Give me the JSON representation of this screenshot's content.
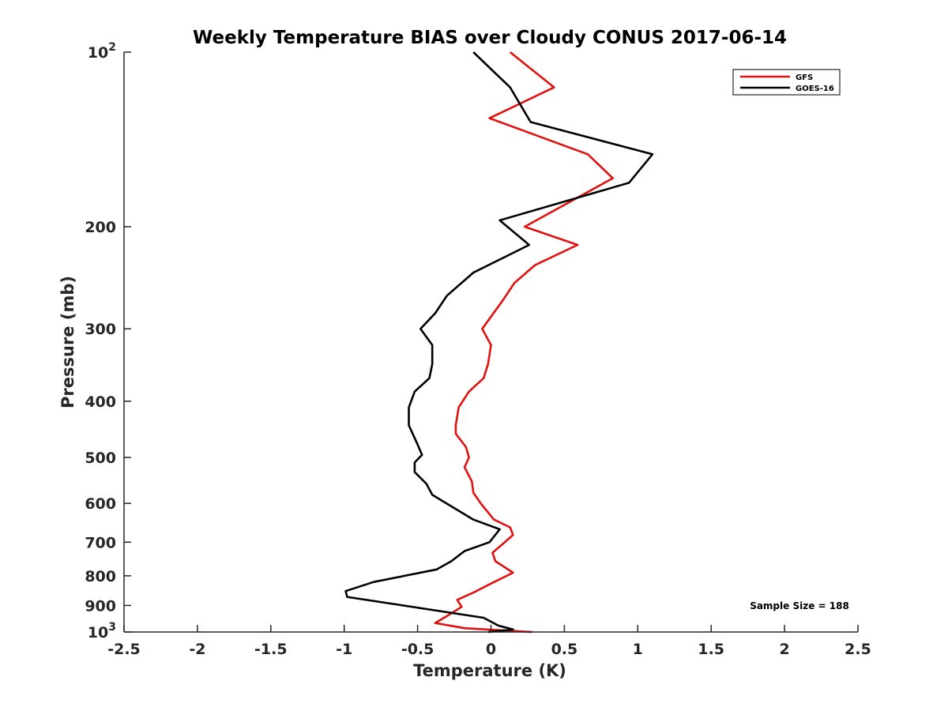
{
  "chart_data": {
    "type": "line",
    "title": "Weekly Temperature BIAS over Cloudy CONUS 2017-06-14",
    "xlabel": "Temperature (K)",
    "ylabel": "Pressure (mb)",
    "xlim": [
      -2.5,
      2.5
    ],
    "ylim": [
      1000,
      100
    ],
    "yscale": "log",
    "y_reversed": true,
    "x_ticks": [
      "-2.5",
      "-2",
      "-1.5",
      "-1",
      "-0.5",
      "0",
      "0.5",
      "1",
      "1.5",
      "2",
      "2.5"
    ],
    "y_ticks": [
      {
        "value": 100,
        "base": "10",
        "exp": "2"
      },
      {
        "value": 200,
        "label": "200"
      },
      {
        "value": 300,
        "label": "300"
      },
      {
        "value": 400,
        "label": "400"
      },
      {
        "value": 500,
        "label": "500"
      },
      {
        "value": 600,
        "label": "600"
      },
      {
        "value": 700,
        "label": "700"
      },
      {
        "value": 800,
        "label": "800"
      },
      {
        "value": 900,
        "label": "900"
      },
      {
        "value": 1000,
        "base": "10",
        "exp": "3"
      }
    ],
    "grid": false,
    "legend_position": "top-right",
    "series": [
      {
        "name": "GFS",
        "color": "#e0110f",
        "points": [
          [
            0.13,
            100
          ],
          [
            0.43,
            115
          ],
          [
            -0.01,
            130
          ],
          [
            0.66,
            150
          ],
          [
            0.83,
            165
          ],
          [
            0.23,
            200
          ],
          [
            0.59,
            215
          ],
          [
            0.3,
            233
          ],
          [
            0.16,
            250
          ],
          [
            0.08,
            268
          ],
          [
            -0.06,
            300
          ],
          [
            0.0,
            320
          ],
          [
            -0.02,
            345
          ],
          [
            -0.05,
            365
          ],
          [
            -0.15,
            385
          ],
          [
            -0.22,
            410
          ],
          [
            -0.24,
            440
          ],
          [
            -0.24,
            455
          ],
          [
            -0.17,
            480
          ],
          [
            -0.15,
            500
          ],
          [
            -0.18,
            520
          ],
          [
            -0.13,
            550
          ],
          [
            -0.12,
            575
          ],
          [
            -0.07,
            600
          ],
          [
            0.02,
            640
          ],
          [
            0.13,
            660
          ],
          [
            0.15,
            680
          ],
          [
            0.08,
            705
          ],
          [
            0.01,
            730
          ],
          [
            0.03,
            755
          ],
          [
            0.15,
            790
          ],
          [
            0.0,
            825
          ],
          [
            -0.12,
            855
          ],
          [
            -0.23,
            880
          ],
          [
            -0.2,
            905
          ],
          [
            -0.29,
            935
          ],
          [
            -0.38,
            965
          ],
          [
            -0.18,
            985
          ],
          [
            0.28,
            1000
          ]
        ]
      },
      {
        "name": "GOES-16",
        "color": "#000000",
        "points": [
          [
            -0.12,
            100
          ],
          [
            0.13,
            115
          ],
          [
            0.27,
            132
          ],
          [
            1.1,
            150
          ],
          [
            0.94,
            168
          ],
          [
            0.06,
            195
          ],
          [
            0.26,
            215
          ],
          [
            -0.12,
            240
          ],
          [
            -0.3,
            263
          ],
          [
            -0.38,
            282
          ],
          [
            -0.48,
            300
          ],
          [
            -0.4,
            320
          ],
          [
            -0.4,
            345
          ],
          [
            -0.42,
            365
          ],
          [
            -0.52,
            385
          ],
          [
            -0.56,
            410
          ],
          [
            -0.56,
            440
          ],
          [
            -0.5,
            475
          ],
          [
            -0.47,
            495
          ],
          [
            -0.52,
            510
          ],
          [
            -0.52,
            530
          ],
          [
            -0.44,
            555
          ],
          [
            -0.4,
            580
          ],
          [
            -0.12,
            640
          ],
          [
            0.06,
            665
          ],
          [
            -0.01,
            700
          ],
          [
            -0.18,
            725
          ],
          [
            -0.27,
            755
          ],
          [
            -0.37,
            780
          ],
          [
            -0.8,
            820
          ],
          [
            -0.99,
            850
          ],
          [
            -0.98,
            870
          ],
          [
            -0.05,
            945
          ],
          [
            0.05,
            975
          ],
          [
            0.15,
            990
          ],
          [
            -0.02,
            1000
          ]
        ]
      }
    ],
    "annotations": [
      {
        "text": "Sample Size = 188",
        "position": "bottom-right"
      }
    ]
  }
}
